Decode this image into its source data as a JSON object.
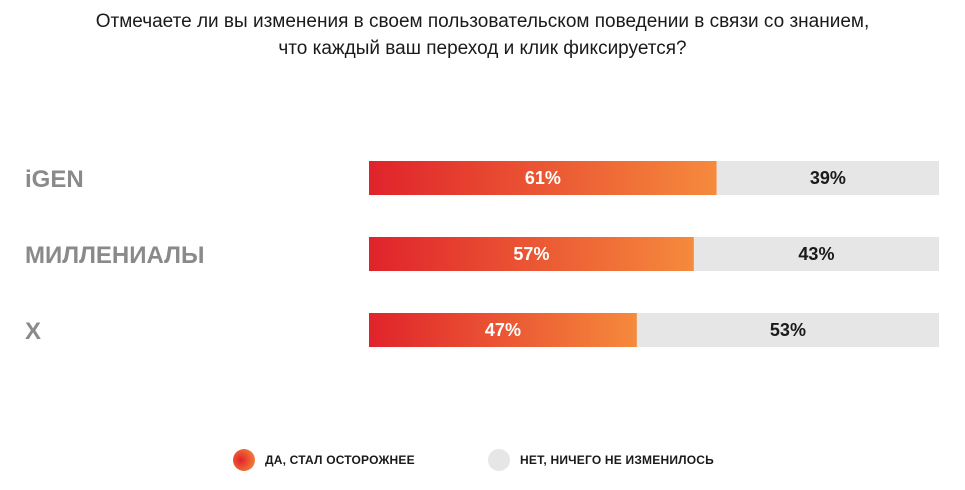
{
  "chart_data": {
    "type": "bar",
    "orientation": "horizontal",
    "stacked": true,
    "title": "Отмечаете ли вы изменения в своем пользовательском поведении в связи со знанием, что каждый ваш переход и клик фиксируется?",
    "title_lines": [
      "Отмечаете ли вы изменения в своем пользовательском поведении в связи со знанием,",
      "что каждый ваш переход и клик фиксируется?"
    ],
    "categories": [
      "iGEN",
      "МИЛЛЕНИАЛЫ",
      "X"
    ],
    "series": [
      {
        "name": "ДА, СТАЛ ОСТОРОЖНЕЕ",
        "values": [
          61,
          57,
          47
        ],
        "labels": [
          "61%",
          "57%",
          "47%"
        ],
        "color_start": "#e0232b",
        "color_end": "#f58a3c"
      },
      {
        "name": "НЕТ, НИЧЕГО НЕ ИЗМЕНИЛОСЬ",
        "values": [
          39,
          43,
          53
        ],
        "labels": [
          "39%",
          "43%",
          "53%"
        ],
        "color": "#e6e6e6"
      }
    ],
    "xlim": [
      0,
      100
    ],
    "grid": false,
    "legend_position": "bottom"
  }
}
